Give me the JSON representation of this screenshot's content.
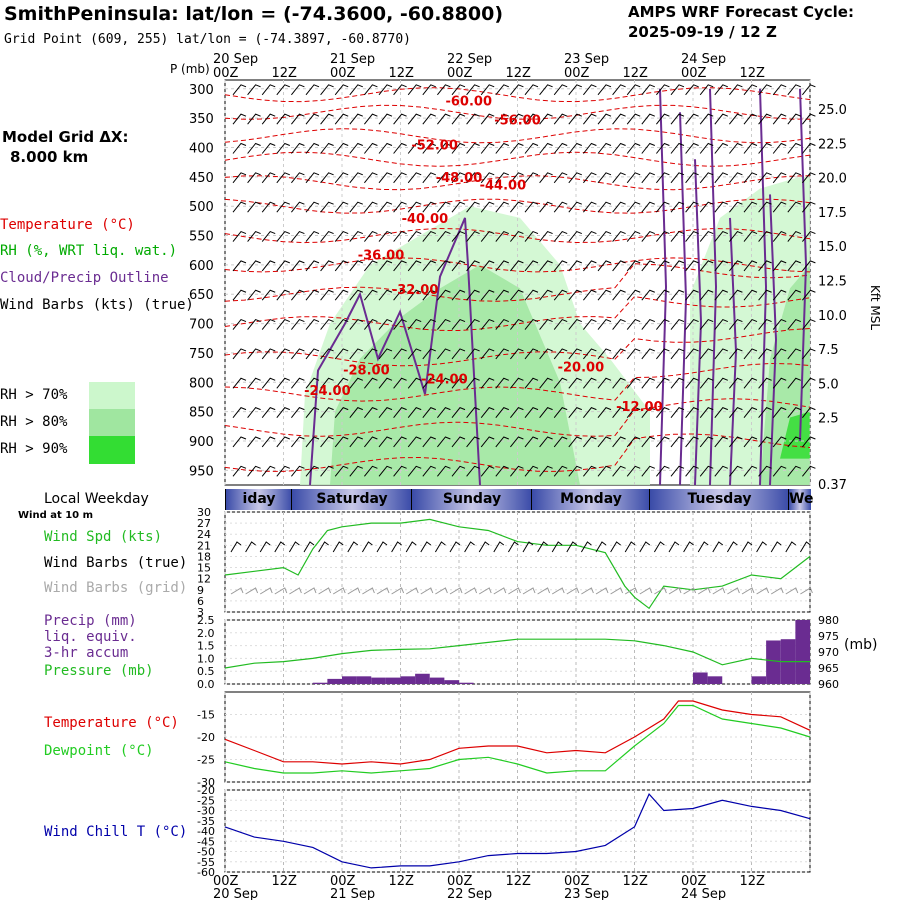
{
  "header": {
    "title": "SmithPeninsula:  lat/lon = (-74.3600, -60.8800)",
    "gridpoint": "Grid Point (609, 255) lat/lon = (-74.3897, -60.8770)",
    "cycle_line1": "AMPS WRF Forecast Cycle:",
    "cycle_line2": "2025-09-19 / 12  Z"
  },
  "left_panel": {
    "grid_label": "Model Grid ΔX:",
    "grid_value": "8.000 km",
    "legend_temperature": "Temperature (°C)",
    "legend_rh": "RH (%, WRT liq. wat.)",
    "legend_cloud": "Cloud/Precip Outline",
    "legend_wind": "Wind Barbs (kts) (true)",
    "rh_levels": [
      "RH > 70%",
      "RH > 80%",
      "RH > 90%"
    ],
    "rh_colors": [
      "#ccf7cc",
      "#a0e6a0",
      "#33dd33"
    ]
  },
  "colors": {
    "temperature": "#dd0000",
    "rh_label": "#00aa00",
    "cloud": "#6a2c91",
    "wind_speed": "#22bb22",
    "pressure": "#22bb22",
    "precip": "#6a2c91",
    "dewpoint": "#22cc22",
    "wind_chill": "#0000aa",
    "grid_barbs": "#999999"
  },
  "time_axis": {
    "top_dates": [
      "20 Sep",
      "21 Sep",
      "22 Sep",
      "23 Sep",
      "24 Sep"
    ],
    "hour_labels": [
      "00Z",
      "12Z",
      "00Z",
      "12Z",
      "00Z",
      "12Z",
      "00Z",
      "12Z",
      "00Z",
      "12Z"
    ],
    "bottom_hours": [
      "00Z",
      "12Z",
      "00Z",
      "12Z",
      "00Z",
      "12Z",
      "00Z",
      "12Z",
      "00Z",
      "12Z"
    ],
    "bottom_dates": [
      "20 Sep",
      "21 Sep",
      "22 Sep",
      "23 Sep",
      "24 Sep"
    ],
    "p_unit": "P (mb)"
  },
  "day_band": {
    "label": "Local Weekday",
    "days": [
      "iday",
      "Saturday",
      "Sunday",
      "Monday",
      "Tuesday",
      "We"
    ]
  },
  "panel_labels": {
    "wind_at": "Wind at 10 m",
    "wind_spd": "Wind Spd (kts)",
    "wind_barbs_true": "Wind Barbs (true)",
    "wind_barbs_grid": "Wind Barbs (grid)",
    "precip1": "Precip (mm)",
    "precip2": "liq. equiv.",
    "precip3": "3-hr accum",
    "pressure": "Pressure (mb)",
    "pressure_unit": "(mb)",
    "temperature": "Temperature (°C)",
    "dewpoint": "Dewpoint (°C)",
    "wind_chill": "Wind Chill T (°C)",
    "height_unit": "Kft MSL"
  },
  "chart_data": [
    {
      "type": "heatmap",
      "id": "cross_section",
      "y_label": "P (mb)",
      "pressure_levels": [
        300,
        350,
        400,
        450,
        500,
        550,
        600,
        650,
        700,
        750,
        800,
        850,
        900,
        950
      ],
      "height_labels": [
        "25.0",
        "22.5",
        "20.0",
        "17.5",
        "15.0",
        "12.5",
        "10.0",
        "7.5",
        "5.0",
        "2.5",
        "0.37"
      ],
      "x_range_hours": [
        0,
        120
      ],
      "temperature_labels": [
        {
          "text": "-60.00",
          "t": 50,
          "p": 322
        },
        {
          "text": "-56.00",
          "t": 60,
          "p": 354
        },
        {
          "text": "-52.00",
          "t": 43,
          "p": 397
        },
        {
          "text": "-48.00",
          "t": 48,
          "p": 452
        },
        {
          "text": "-44.00",
          "t": 57,
          "p": 465
        },
        {
          "text": "-40.00",
          "t": 41,
          "p": 522
        },
        {
          "text": "-36.00",
          "t": 32,
          "p": 584
        },
        {
          "text": "-32.00",
          "t": 39,
          "p": 643
        },
        {
          "text": "-28.00",
          "t": 29,
          "p": 780
        },
        {
          "text": "-24.00",
          "t": 45,
          "p": 795
        },
        {
          "text": "-20.00",
          "t": 73,
          "p": 775
        },
        {
          "text": "-24.00",
          "t": 21,
          "p": 815
        },
        {
          "text": "-12.00",
          "t": 85,
          "p": 842
        }
      ]
    },
    {
      "type": "line",
      "id": "wind_speed",
      "ylim": [
        3,
        30
      ],
      "yticks": [
        3,
        6,
        9,
        12,
        15,
        18,
        21,
        24,
        27,
        30
      ],
      "x_hours": [
        0,
        6,
        12,
        15,
        18,
        21,
        24,
        30,
        36,
        42,
        48,
        54,
        60,
        66,
        72,
        78,
        82,
        84,
        87,
        90,
        96,
        102,
        108,
        114,
        120
      ],
      "values": [
        13,
        14,
        15,
        13,
        20,
        25,
        26,
        27,
        27,
        28,
        26,
        25,
        22,
        21,
        21,
        19,
        10,
        7,
        4,
        10,
        9,
        10,
        13,
        12,
        18
      ]
    },
    {
      "type": "bar",
      "id": "precip_pressure",
      "ylim": [
        0,
        2.5
      ],
      "yticks": [
        "0.0",
        "0.5",
        "1.0",
        "1.5",
        "2.0",
        "2.5"
      ],
      "x_hours_start": [
        18,
        21,
        24,
        27,
        30,
        33,
        36,
        39,
        42,
        45,
        48,
        96,
        99,
        108,
        111,
        114,
        117
      ],
      "values": [
        0.05,
        0.2,
        0.3,
        0.3,
        0.25,
        0.25,
        0.3,
        0.4,
        0.25,
        0.15,
        0.05,
        0.45,
        0.3,
        0.3,
        1.7,
        1.75,
        2.5
      ],
      "pressure_ylim": [
        960,
        980
      ],
      "pressure_yticks": [
        960,
        965,
        970,
        975,
        980
      ],
      "pressure_x_hours": [
        0,
        6,
        12,
        18,
        24,
        30,
        36,
        42,
        48,
        54,
        60,
        66,
        72,
        78,
        84,
        90,
        96,
        102,
        108,
        114,
        120
      ],
      "pressure_values": [
        965,
        966.5,
        967,
        968,
        969.5,
        970.5,
        970.8,
        971,
        972,
        973,
        974,
        974,
        974,
        974,
        973.5,
        972,
        970,
        966,
        968,
        967,
        967
      ]
    },
    {
      "type": "line",
      "id": "temp_dewpoint",
      "ylim": [
        -30,
        -10
      ],
      "yticks": [
        -30,
        -25,
        -20,
        -15
      ],
      "x_hours": [
        0,
        6,
        12,
        18,
        24,
        30,
        36,
        42,
        48,
        54,
        60,
        66,
        72,
        78,
        84,
        90,
        93,
        96,
        102,
        108,
        114,
        120
      ],
      "series": [
        {
          "name": "Temperature (°C)",
          "values": [
            -20.5,
            -23,
            -25.5,
            -25.5,
            -26,
            -25.5,
            -26,
            -25,
            -22.5,
            -22,
            -22,
            -23.5,
            -23,
            -23.5,
            -20,
            -16,
            -12,
            -12,
            -14,
            -15,
            -15.5,
            -18.5
          ]
        },
        {
          "name": "Dewpoint (°C)",
          "values": [
            -25.5,
            -27,
            -28,
            -28,
            -27.5,
            -28,
            -27.5,
            -27,
            -25,
            -24.5,
            -26,
            -28,
            -27.5,
            -27.5,
            -22,
            -17,
            -13,
            -13,
            -16,
            -17,
            -18,
            -20
          ]
        }
      ]
    },
    {
      "type": "line",
      "id": "wind_chill",
      "ylim": [
        -60,
        -20
      ],
      "yticks": [
        -60,
        -55,
        -50,
        -45,
        -40,
        -35,
        -30,
        -25,
        -20
      ],
      "x_hours": [
        0,
        6,
        12,
        18,
        24,
        30,
        36,
        42,
        48,
        54,
        60,
        66,
        72,
        78,
        84,
        87,
        90,
        96,
        102,
        108,
        114,
        120
      ],
      "values": [
        -38,
        -43,
        -45,
        -48,
        -55,
        -58,
        -57,
        -57,
        -55,
        -52,
        -51,
        -51,
        -50,
        -47,
        -38,
        -22,
        -30,
        -29,
        -25,
        -28,
        -30,
        -34
      ]
    }
  ]
}
